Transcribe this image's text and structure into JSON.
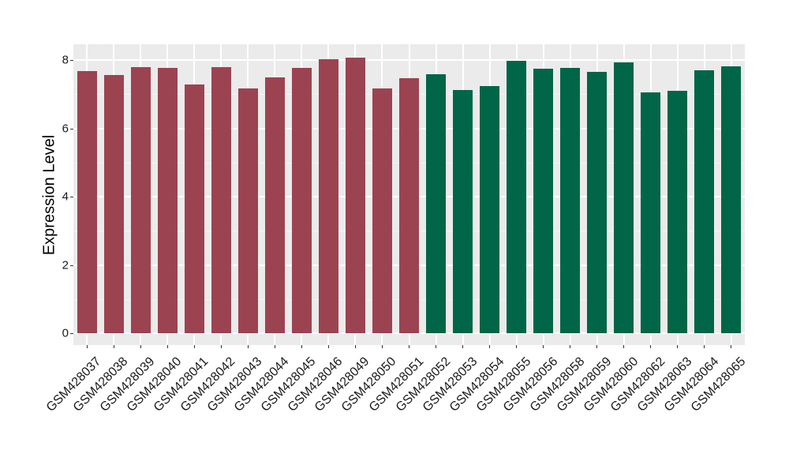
{
  "figure": {
    "background_color": "#FFFFFF",
    "panel_color": "#EBEBEB",
    "grid_major_color": "#FFFFFF",
    "grid_minor_color": "#F5F5F5",
    "tick_mark_color": "#333333",
    "axis_text_color": "#1A1A1A",
    "axis_title_color": "#000000"
  },
  "chart_data": {
    "type": "bar",
    "title": "",
    "xlabel": "",
    "ylabel": "Expression Level",
    "ylim": [
      0,
      8.46
    ],
    "yticks": [
      "0",
      "2",
      "4",
      "6",
      "8"
    ],
    "ytick_values": [
      0,
      2,
      4,
      6,
      8
    ],
    "yticks_minor_values": [
      1,
      3,
      5,
      7
    ],
    "grid": "on",
    "legend_position": "none",
    "group_colors": {
      "left_group_red": "#9C4351",
      "right_group_green": "#006647"
    },
    "categories": [
      "GSM428037",
      "GSM428038",
      "GSM428039",
      "GSM428040",
      "GSM428041",
      "GSM428042",
      "GSM428043",
      "GSM428044",
      "GSM428045",
      "GSM428046",
      "GSM428049",
      "GSM428050",
      "GSM428051",
      "GSM428052",
      "GSM428053",
      "GSM428054",
      "GSM428055",
      "GSM428056",
      "GSM428058",
      "GSM428059",
      "GSM428060",
      "GSM428062",
      "GSM428063",
      "GSM428064",
      "GSM428065"
    ],
    "values": [
      7.67,
      7.57,
      7.8,
      7.76,
      7.28,
      7.8,
      7.17,
      7.49,
      7.76,
      8.03,
      8.06,
      7.16,
      7.47,
      7.58,
      7.13,
      7.24,
      7.97,
      7.74,
      7.77,
      7.65,
      7.92,
      7.06,
      7.1,
      7.71,
      7.82
    ],
    "bar_colors": [
      "#9C4351",
      "#9C4351",
      "#9C4351",
      "#9C4351",
      "#9C4351",
      "#9C4351",
      "#9C4351",
      "#9C4351",
      "#9C4351",
      "#9C4351",
      "#9C4351",
      "#9C4351",
      "#9C4351",
      "#006647",
      "#006647",
      "#006647",
      "#006647",
      "#006647",
      "#006647",
      "#006647",
      "#006647",
      "#006647",
      "#006647",
      "#006647",
      "#006647"
    ]
  }
}
